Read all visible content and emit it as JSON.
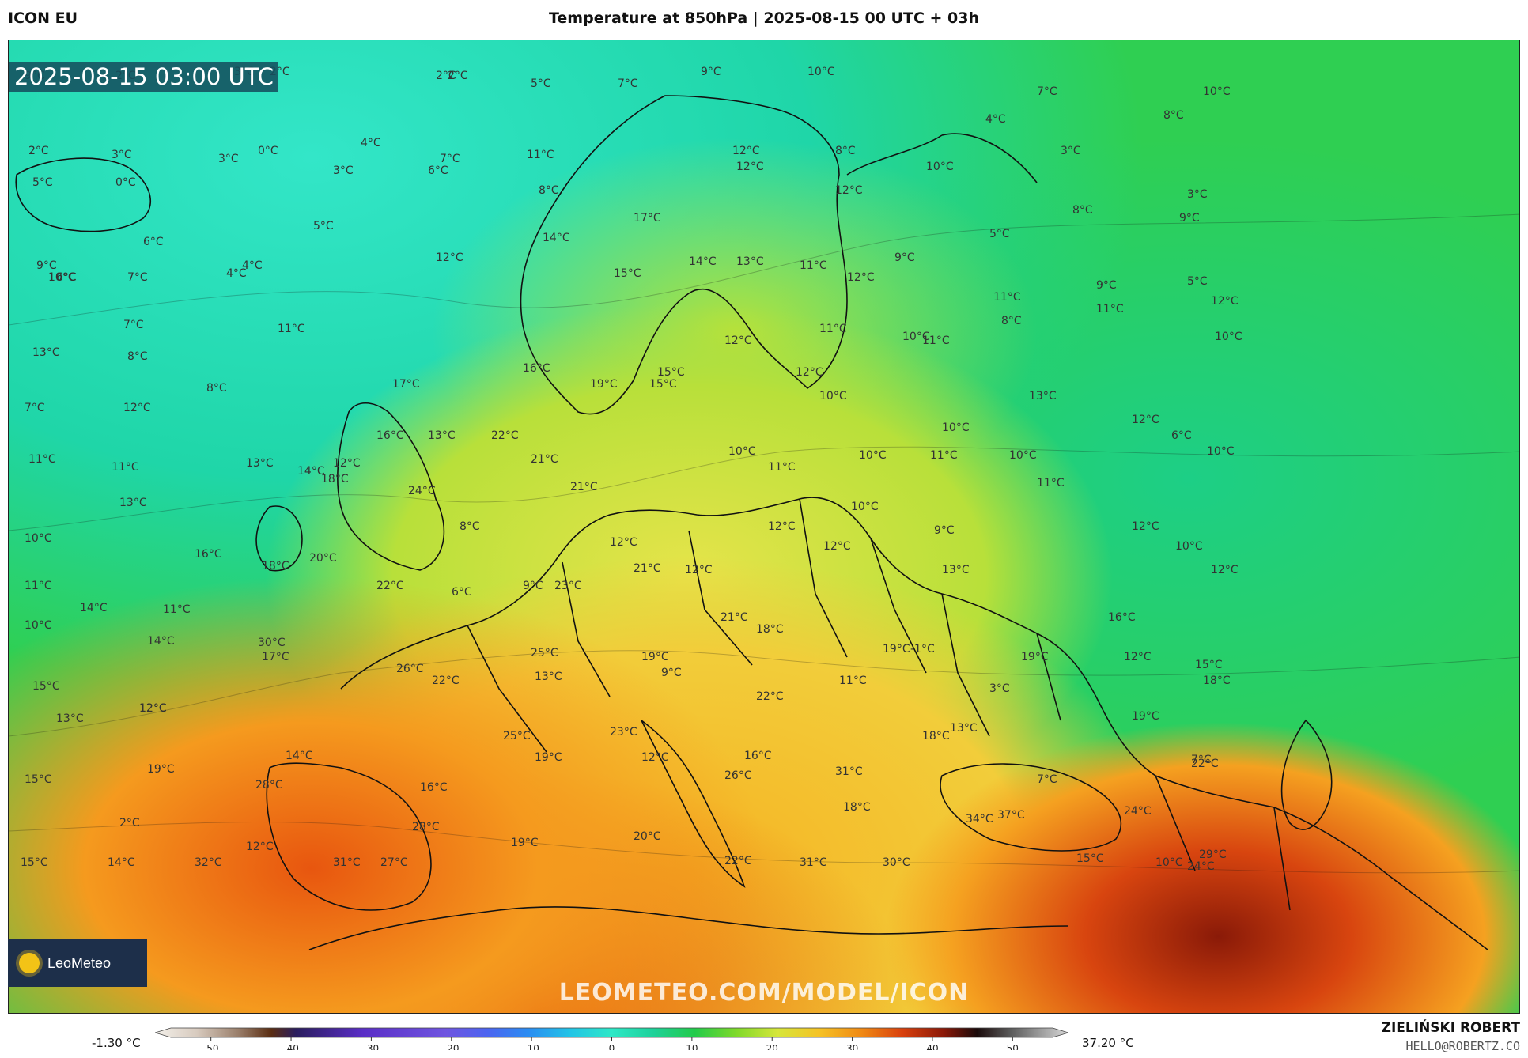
{
  "header": {
    "model": "ICON EU",
    "title": "Temperature at 850hPa | 2025-08-15 00 UTC + 03h"
  },
  "map": {
    "valid_time": "2025-08-15 03:00 UTC",
    "watermark": "LEOMETEO.COM/MODEL/ICON",
    "logo_text": "LeoMeteo",
    "temperature_labels": [
      {
        "t": "9°C"
      },
      {
        "t": "2°C"
      },
      {
        "t": "3°C"
      },
      {
        "t": "2°C"
      },
      {
        "t": "2°C"
      },
      {
        "t": "2°C"
      },
      {
        "t": "5°C"
      },
      {
        "t": "7°C"
      },
      {
        "t": "9°C"
      },
      {
        "t": "10°C"
      },
      {
        "t": "7°C"
      },
      {
        "t": "10°C"
      },
      {
        "t": "2°C"
      },
      {
        "t": "3°C"
      },
      {
        "t": "3°C"
      },
      {
        "t": "0°C"
      },
      {
        "t": "4°C"
      },
      {
        "t": "3°C"
      },
      {
        "t": "7°C"
      },
      {
        "t": "6°C"
      },
      {
        "t": "11°C"
      },
      {
        "t": "12°C"
      },
      {
        "t": "12°C"
      },
      {
        "t": "8°C"
      },
      {
        "t": "4°C"
      },
      {
        "t": "8°C"
      },
      {
        "t": "5°C"
      },
      {
        "t": "0°C"
      },
      {
        "t": "8°C"
      },
      {
        "t": "10°C"
      },
      {
        "t": "3°C"
      },
      {
        "t": "12°C"
      },
      {
        "t": "17°C"
      },
      {
        "t": "5°C"
      },
      {
        "t": "3°C"
      },
      {
        "t": "8°C"
      },
      {
        "t": "9°C"
      },
      {
        "t": "6°C"
      },
      {
        "t": "14°C"
      },
      {
        "t": "12°C"
      },
      {
        "t": "14°C"
      },
      {
        "t": "13°C"
      },
      {
        "t": "11°C"
      },
      {
        "t": "9°C"
      },
      {
        "t": "5°C"
      },
      {
        "t": "9°C"
      },
      {
        "t": "6°C"
      },
      {
        "t": "7°C"
      },
      {
        "t": "4°C"
      },
      {
        "t": "4°C"
      },
      {
        "t": "15°C"
      },
      {
        "t": "12°C"
      },
      {
        "t": "9°C"
      },
      {
        "t": "5°C"
      },
      {
        "t": "10°C"
      },
      {
        "t": "11°C"
      },
      {
        "t": "8°C"
      },
      {
        "t": "11°C"
      },
      {
        "t": "12°C"
      },
      {
        "t": "7°C"
      },
      {
        "t": "11°C"
      },
      {
        "t": "11°C"
      },
      {
        "t": "12°C"
      },
      {
        "t": "10°C"
      },
      {
        "t": "11°C"
      },
      {
        "t": "10°C"
      },
      {
        "t": "13°C"
      },
      {
        "t": "8°C"
      },
      {
        "t": "8°C"
      },
      {
        "t": "17°C"
      },
      {
        "t": "16°C"
      },
      {
        "t": "19°C"
      },
      {
        "t": "15°C"
      },
      {
        "t": "15°C"
      },
      {
        "t": "12°C"
      },
      {
        "t": "10°C"
      },
      {
        "t": "7°C"
      },
      {
        "t": "12°C"
      },
      {
        "t": "13°C"
      },
      {
        "t": "22°C"
      },
      {
        "t": "10°C"
      },
      {
        "t": "13°C"
      },
      {
        "t": "12°C"
      },
      {
        "t": "6°C"
      },
      {
        "t": "11°C"
      },
      {
        "t": "12°C"
      },
      {
        "t": "11°C"
      },
      {
        "t": "14°C"
      },
      {
        "t": "13°C"
      },
      {
        "t": "16°C"
      },
      {
        "t": "21°C"
      },
      {
        "t": "21°C"
      },
      {
        "t": "10°C"
      },
      {
        "t": "11°C"
      },
      {
        "t": "10°C"
      },
      {
        "t": "11°C"
      },
      {
        "t": "10°C"
      },
      {
        "t": "11°C"
      },
      {
        "t": "10°C"
      },
      {
        "t": "13°C"
      },
      {
        "t": "18°C"
      },
      {
        "t": "24°C"
      },
      {
        "t": "8°C"
      },
      {
        "t": "10°C"
      },
      {
        "t": "9°C"
      },
      {
        "t": "12°C"
      },
      {
        "t": "12°C"
      },
      {
        "t": "12°C"
      },
      {
        "t": "10°C"
      },
      {
        "t": "16°C"
      },
      {
        "t": "20°C"
      },
      {
        "t": "18°C"
      },
      {
        "t": "12°C"
      },
      {
        "t": "23°C"
      },
      {
        "t": "21°C"
      },
      {
        "t": "12°C"
      },
      {
        "t": "13°C"
      },
      {
        "t": "10°C"
      },
      {
        "t": "12°C"
      },
      {
        "t": "11°C"
      },
      {
        "t": "22°C"
      },
      {
        "t": "9°C"
      },
      {
        "t": "6°C"
      },
      {
        "t": "21°C"
      },
      {
        "t": "14°C"
      },
      {
        "t": "11°C"
      },
      {
        "t": "18°C"
      },
      {
        "t": "16°C"
      },
      {
        "t": "10°C"
      },
      {
        "t": "14°C"
      },
      {
        "t": "30°C"
      },
      {
        "t": "17°C"
      },
      {
        "t": "25°C"
      },
      {
        "t": "19°C"
      },
      {
        "t": "19°C"
      },
      {
        "t": "-1°C"
      },
      {
        "t": "12°C"
      },
      {
        "t": "19°C"
      },
      {
        "t": "15°C"
      },
      {
        "t": "15°C"
      },
      {
        "t": "12°C"
      },
      {
        "t": "26°C"
      },
      {
        "t": "13°C"
      },
      {
        "t": "22°C"
      },
      {
        "t": "9°C"
      },
      {
        "t": "11°C"
      },
      {
        "t": "22°C"
      },
      {
        "t": "3°C"
      },
      {
        "t": "18°C"
      },
      {
        "t": "13°C"
      },
      {
        "t": "12°C"
      },
      {
        "t": "18°C"
      },
      {
        "t": "13°C"
      },
      {
        "t": "19°C"
      },
      {
        "t": "25°C"
      },
      {
        "t": "23°C"
      },
      {
        "t": "14°C"
      },
      {
        "t": "19°C"
      },
      {
        "t": "12°C"
      },
      {
        "t": "16°C"
      },
      {
        "t": "15°C"
      },
      {
        "t": "19°C"
      },
      {
        "t": "28°C"
      },
      {
        "t": "16°C"
      },
      {
        "t": "26°C"
      },
      {
        "t": "31°C"
      },
      {
        "t": "7°C"
      },
      {
        "t": "7°C"
      },
      {
        "t": "22°C"
      },
      {
        "t": "2°C"
      },
      {
        "t": "28°C"
      },
      {
        "t": "18°C"
      },
      {
        "t": "34°C"
      },
      {
        "t": "37°C"
      },
      {
        "t": "24°C"
      },
      {
        "t": "12°C"
      },
      {
        "t": "19°C"
      },
      {
        "t": "20°C"
      },
      {
        "t": "22°C"
      },
      {
        "t": "29°C"
      },
      {
        "t": "15°C"
      },
      {
        "t": "14°C"
      },
      {
        "t": "32°C"
      },
      {
        "t": "31°C"
      },
      {
        "t": "27°C"
      },
      {
        "t": "31°C"
      },
      {
        "t": "30°C"
      },
      {
        "t": "15°C"
      },
      {
        "t": "10°C"
      },
      {
        "t": "24°C"
      }
    ]
  },
  "colorbar": {
    "min_label": "-1.30 °C",
    "max_label": "37.20 °C",
    "ticks": [
      "-50",
      "-40",
      "-30",
      "-20",
      "-10",
      "0",
      "10",
      "20",
      "30",
      "40",
      "50"
    ],
    "range": [
      -55,
      55
    ],
    "stops": [
      {
        "v": -55,
        "c": "#f3f0ea"
      },
      {
        "v": -50,
        "c": "#d8cbbf"
      },
      {
        "v": -45,
        "c": "#9a7f6b"
      },
      {
        "v": -41,
        "c": "#5a2d12"
      },
      {
        "v": -38,
        "c": "#2a1d5e"
      },
      {
        "v": -30,
        "c": "#5a2ec6"
      },
      {
        "v": -20,
        "c": "#6f55e0"
      },
      {
        "v": -15,
        "c": "#4c64f0"
      },
      {
        "v": -10,
        "c": "#2a8df2"
      },
      {
        "v": -5,
        "c": "#22c4e6"
      },
      {
        "v": 0,
        "c": "#2ee8c7"
      },
      {
        "v": 5,
        "c": "#1ed19a"
      },
      {
        "v": 10,
        "c": "#23cb4a"
      },
      {
        "v": 15,
        "c": "#7fd92a"
      },
      {
        "v": 20,
        "c": "#d6e63a"
      },
      {
        "v": 25,
        "c": "#f5c225"
      },
      {
        "v": 30,
        "c": "#f08a14"
      },
      {
        "v": 35,
        "c": "#d8400d"
      },
      {
        "v": 40,
        "c": "#8a1808"
      },
      {
        "v": 44,
        "c": "#1a0a0a"
      },
      {
        "v": 48,
        "c": "#5a5a5a"
      },
      {
        "v": 55,
        "c": "#d9d9d9"
      }
    ]
  },
  "footer": {
    "author": "ZIELIŃSKI ROBERT",
    "email": "HELLO@ROBERTZ.CO"
  }
}
